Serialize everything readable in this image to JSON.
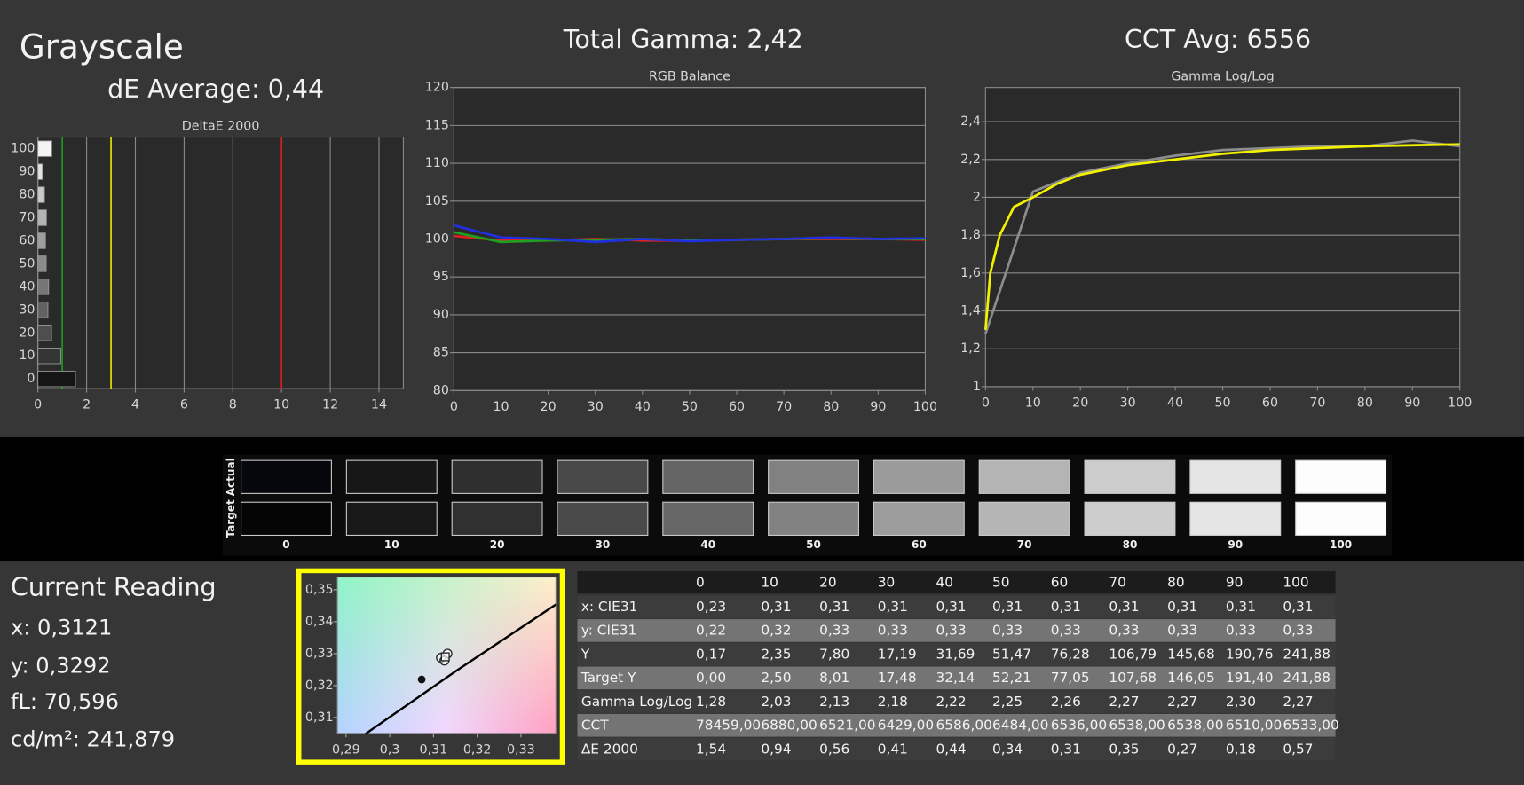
{
  "title": "Grayscale",
  "summary": {
    "de_average": "dE Average: 0,44",
    "total_gamma": "Total Gamma: 2,42",
    "cct_avg": "CCT Avg: 6556"
  },
  "chart_data": [
    {
      "type": "hbar",
      "title": "DeltaE 2000",
      "categories": [
        100,
        90,
        80,
        70,
        60,
        50,
        40,
        30,
        20,
        10,
        0
      ],
      "values": [
        0.57,
        0.18,
        0.27,
        0.35,
        0.31,
        0.34,
        0.44,
        0.41,
        0.56,
        0.94,
        1.54
      ],
      "colors": [
        "#f4f4f4",
        "#e2e2e2",
        "#cacaca",
        "#b4b4b4",
        "#9e9e9e",
        "#8a8a8a",
        "#767676",
        "#626262",
        "#4e4e4e",
        "#353535",
        "#151515"
      ],
      "xlim": [
        0,
        15
      ],
      "xticks": [
        0,
        2,
        4,
        6,
        8,
        10,
        12,
        14
      ],
      "grid": true,
      "reference_lines": [
        {
          "value": 1,
          "color": "#1f9a1f"
        },
        {
          "value": 3,
          "color": "#e6e600"
        },
        {
          "value": 10,
          "color": "#d42020"
        }
      ]
    },
    {
      "type": "line",
      "title": "RGB Balance",
      "x": [
        0,
        10,
        20,
        30,
        40,
        50,
        60,
        70,
        80,
        90,
        100
      ],
      "series": [
        {
          "color": "#e02020",
          "values": [
            100.4,
            99.8,
            99.8,
            100.0,
            99.8,
            99.8,
            99.9,
            100.0,
            100.0,
            100.0,
            99.9
          ]
        },
        {
          "color": "#20a020",
          "values": [
            100.9,
            99.6,
            99.8,
            99.9,
            100.0,
            99.8,
            99.9,
            100.0,
            100.1,
            100.0,
            100.0
          ]
        },
        {
          "color": "#2030e0",
          "values": [
            101.8,
            100.2,
            100.0,
            99.6,
            100.0,
            99.7,
            99.9,
            100.0,
            100.2,
            100.0,
            100.1
          ]
        }
      ],
      "xlim": [
        0,
        100
      ],
      "xticks": [
        0,
        10,
        20,
        30,
        40,
        50,
        60,
        70,
        80,
        90,
        100
      ],
      "ylim": [
        80,
        120
      ],
      "yticks": [
        80,
        85,
        90,
        95,
        100,
        105,
        110,
        115,
        120
      ],
      "grid": true
    },
    {
      "type": "line",
      "title": "Gamma Log/Log",
      "series": [
        {
          "color": "#8c8c8c",
          "x": [
            0,
            10,
            20,
            30,
            40,
            50,
            60,
            70,
            80,
            90,
            100
          ],
          "values": [
            1.28,
            2.03,
            2.13,
            2.18,
            2.22,
            2.25,
            2.26,
            2.27,
            2.27,
            2.3,
            2.27
          ]
        },
        {
          "color": "#f2f200",
          "x": [
            0,
            1,
            3,
            6,
            10,
            15,
            20,
            30,
            40,
            50,
            60,
            70,
            80,
            90,
            100
          ],
          "values": [
            1.3,
            1.6,
            1.8,
            1.95,
            2.0,
            2.07,
            2.12,
            2.17,
            2.2,
            2.23,
            2.25,
            2.26,
            2.27,
            2.275,
            2.28
          ]
        }
      ],
      "xlim": [
        0,
        100
      ],
      "xticks": [
        0,
        10,
        20,
        30,
        40,
        50,
        60,
        70,
        80,
        90,
        100
      ],
      "ylim": [
        1,
        2.58
      ],
      "yticks": [
        1,
        {
          "value": 1.2,
          "label": "1,2"
        },
        {
          "value": 1.4,
          "label": "1,4"
        },
        {
          "value": 1.6,
          "label": "1,6"
        },
        {
          "value": 1.8,
          "label": "1,8"
        },
        2,
        {
          "value": 2.2,
          "label": "2,2"
        },
        {
          "value": 2.4,
          "label": "2,4"
        }
      ],
      "grid": true
    },
    {
      "type": "scatter",
      "series": [
        {
          "style": "line",
          "color": "#000000",
          "x": [
            0.2944,
            0.3153,
            0.338
          ],
          "values": [
            0.3048,
            0.3247,
            0.3454
          ]
        },
        {
          "style": "dot",
          "color": "#111111",
          "x": [
            0.3073
          ],
          "values": [
            0.3219
          ]
        },
        {
          "style": "circle",
          "color": "#ffffff",
          "x": [
            0.3117,
            0.3132,
            0.3125
          ],
          "values": [
            0.3287,
            0.33,
            0.3278
          ]
        },
        {
          "style": "square",
          "color": "#ffffff",
          "x": [
            0.3127
          ],
          "values": [
            0.329
          ]
        }
      ],
      "xlim": [
        0.288,
        0.338
      ],
      "xticks": [
        {
          "value": 0.29,
          "label": "0,29"
        },
        {
          "value": 0.3,
          "label": "0,3"
        },
        {
          "value": 0.31,
          "label": "0,31"
        },
        {
          "value": 0.32,
          "label": "0,32"
        },
        {
          "value": 0.33,
          "label": "0,33"
        }
      ],
      "ylim": [
        0.305,
        0.354
      ],
      "yticks": [
        {
          "value": 0.31,
          "label": "0,31"
        },
        {
          "value": 0.32,
          "label": "0,32"
        },
        {
          "value": 0.33,
          "label": "0,33"
        },
        {
          "value": 0.34,
          "label": "0,34"
        },
        {
          "value": 0.35,
          "label": "0,35"
        }
      ],
      "frame_color": "#ffff00"
    }
  ],
  "swatches": {
    "row_labels": [
      "Actual",
      "Target"
    ],
    "levels": [
      0,
      10,
      20,
      30,
      40,
      50,
      60,
      70,
      80,
      90,
      100
    ],
    "actual_colors": [
      "#05070d",
      "#171717",
      "#2f2f2f",
      "#494949",
      "#656565",
      "#818181",
      "#9b9b9b",
      "#b4b4b4",
      "#cccccc",
      "#e4e4e4",
      "#fdfdfd"
    ],
    "target_colors": [
      "#050505",
      "#181818",
      "#303030",
      "#4a4a4a",
      "#666666",
      "#828282",
      "#9c9c9c",
      "#b5b5b5",
      "#cdcdcd",
      "#e5e5e5",
      "#fdfdfd"
    ]
  },
  "current_reading": {
    "title": "Current Reading",
    "lines": [
      "x: 0,3121",
      "y: 0,3292",
      "fL: 70,596",
      "cd/m²: 241,879"
    ]
  },
  "table": {
    "header": [
      "0",
      "10",
      "20",
      "30",
      "40",
      "50",
      "60",
      "70",
      "80",
      "90",
      "100"
    ],
    "rows": [
      [
        "x: CIE31",
        "0,23",
        "0,31",
        "0,31",
        "0,31",
        "0,31",
        "0,31",
        "0,31",
        "0,31",
        "0,31",
        "0,31",
        "0,31"
      ],
      [
        "y: CIE31",
        "0,22",
        "0,32",
        "0,33",
        "0,33",
        "0,33",
        "0,33",
        "0,33",
        "0,33",
        "0,33",
        "0,33",
        "0,33"
      ],
      [
        "Y",
        "0,17",
        "2,35",
        "7,80",
        "17,19",
        "31,69",
        "51,47",
        "76,28",
        "106,79",
        "145,68",
        "190,76",
        "241,88"
      ],
      [
        "Target Y",
        "0,00",
        "2,50",
        "8,01",
        "17,48",
        "32,14",
        "52,21",
        "77,05",
        "107,68",
        "146,05",
        "191,40",
        "241,88"
      ],
      [
        "Gamma Log/Log",
        "1,28",
        "2,03",
        "2,13",
        "2,18",
        "2,22",
        "2,25",
        "2,26",
        "2,27",
        "2,27",
        "2,30",
        "2,27"
      ],
      [
        "CCT",
        "78459,00",
        "6880,00",
        "6521,00",
        "6429,00",
        "6586,00",
        "6484,00",
        "6536,00",
        "6538,00",
        "6538,00",
        "6510,00",
        "6533,00"
      ],
      [
        "ΔE 2000",
        "1,54",
        "0,94",
        "0,56",
        "0,41",
        "0,44",
        "0,34",
        "0,31",
        "0,35",
        "0,27",
        "0,18",
        "0,57"
      ]
    ]
  }
}
